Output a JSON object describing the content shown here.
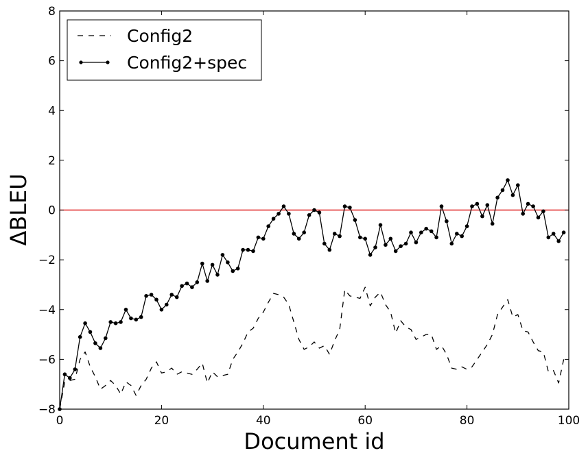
{
  "chart_data": {
    "type": "line",
    "xlabel": "Document id",
    "ylabel": "ΔBLEU",
    "xlim": [
      0,
      100
    ],
    "ylim": [
      -8,
      8
    ],
    "xticks": [
      0,
      20,
      40,
      60,
      80,
      100
    ],
    "yticks": [
      -8,
      -6,
      -4,
      -2,
      0,
      2,
      4,
      6,
      8
    ],
    "legend": {
      "position": "top-left"
    },
    "reference_line": {
      "y": 0,
      "color": "#e02020"
    },
    "series": [
      {
        "name": "Config2",
        "style": "dashed",
        "color": "#000000",
        "x": [
          0,
          1,
          2,
          3,
          4,
          5,
          6,
          7,
          8,
          9,
          10,
          11,
          12,
          13,
          14,
          15,
          16,
          17,
          18,
          19,
          20,
          21,
          22,
          23,
          24,
          25,
          26,
          27,
          28,
          29,
          30,
          31,
          32,
          33,
          34,
          35,
          36,
          37,
          38,
          39,
          40,
          41,
          42,
          43,
          44,
          45,
          46,
          47,
          48,
          49,
          50,
          51,
          52,
          53,
          54,
          55,
          56,
          57,
          58,
          59,
          60,
          61,
          62,
          63,
          64,
          65,
          66,
          67,
          68,
          69,
          70,
          71,
          72,
          73,
          74,
          75,
          76,
          77,
          78,
          79,
          80,
          81,
          82,
          83,
          84,
          85,
          86,
          87,
          88,
          89,
          90,
          91,
          92,
          93,
          94,
          95,
          96,
          97,
          98,
          99
        ],
        "y": [
          -8.0,
          -6.9,
          -6.85,
          -6.8,
          -6.0,
          -5.7,
          -6.3,
          -6.7,
          -7.2,
          -7.05,
          -6.85,
          -7.05,
          -7.4,
          -6.9,
          -7.05,
          -7.45,
          -7.05,
          -6.8,
          -6.35,
          -6.1,
          -6.55,
          -6.5,
          -6.35,
          -6.6,
          -6.5,
          -6.55,
          -6.6,
          -6.4,
          -6.15,
          -6.95,
          -6.5,
          -6.7,
          -6.65,
          -6.6,
          -6.0,
          -5.7,
          -5.35,
          -4.9,
          -4.75,
          -4.35,
          -4.1,
          -3.7,
          -3.35,
          -3.4,
          -3.5,
          -3.8,
          -4.5,
          -5.2,
          -5.6,
          -5.5,
          -5.3,
          -5.55,
          -5.45,
          -5.8,
          -5.25,
          -4.8,
          -3.2,
          -3.45,
          -3.5,
          -3.55,
          -3.1,
          -3.85,
          -3.5,
          -3.3,
          -3.8,
          -4.1,
          -4.95,
          -4.45,
          -4.7,
          -4.8,
          -5.2,
          -5.1,
          -5.0,
          -5.0,
          -5.6,
          -5.45,
          -5.8,
          -6.35,
          -6.4,
          -6.3,
          -6.4,
          -6.3,
          -6.0,
          -5.7,
          -5.4,
          -5.0,
          -4.2,
          -3.9,
          -3.6,
          -4.3,
          -4.2,
          -4.85,
          -4.9,
          -5.3,
          -5.65,
          -5.7,
          -6.5,
          -6.45,
          -6.95,
          -6.0
        ]
      },
      {
        "name": "Config2+spec",
        "style": "solid-markers",
        "color": "#000000",
        "x": [
          0,
          1,
          2,
          3,
          4,
          5,
          6,
          7,
          8,
          9,
          10,
          11,
          12,
          13,
          14,
          15,
          16,
          17,
          18,
          19,
          20,
          21,
          22,
          23,
          24,
          25,
          26,
          27,
          28,
          29,
          30,
          31,
          32,
          33,
          34,
          35,
          36,
          37,
          38,
          39,
          40,
          41,
          42,
          43,
          44,
          45,
          46,
          47,
          48,
          49,
          50,
          51,
          52,
          53,
          54,
          55,
          56,
          57,
          58,
          59,
          60,
          61,
          62,
          63,
          64,
          65,
          66,
          67,
          68,
          69,
          70,
          71,
          72,
          73,
          74,
          75,
          76,
          77,
          78,
          79,
          80,
          81,
          82,
          83,
          84,
          85,
          86,
          87,
          88,
          89,
          90,
          91,
          92,
          93,
          94,
          95,
          96,
          97,
          98,
          99
        ],
        "y": [
          -8.0,
          -6.6,
          -6.75,
          -6.4,
          -5.1,
          -4.55,
          -4.9,
          -5.35,
          -5.55,
          -5.15,
          -4.5,
          -4.55,
          -4.5,
          -4.0,
          -4.35,
          -4.4,
          -4.3,
          -3.45,
          -3.4,
          -3.6,
          -4.0,
          -3.8,
          -3.4,
          -3.5,
          -3.05,
          -2.95,
          -3.1,
          -2.9,
          -2.15,
          -2.85,
          -2.2,
          -2.6,
          -1.8,
          -2.1,
          -2.45,
          -2.35,
          -1.6,
          -1.6,
          -1.65,
          -1.1,
          -1.15,
          -0.65,
          -0.35,
          -0.15,
          0.15,
          -0.15,
          -0.95,
          -1.15,
          -0.9,
          -0.2,
          0.0,
          -0.1,
          -1.35,
          -1.6,
          -0.95,
          -1.05,
          0.15,
          0.1,
          -0.4,
          -1.1,
          -1.15,
          -1.8,
          -1.5,
          -0.6,
          -1.4,
          -1.15,
          -1.65,
          -1.45,
          -1.35,
          -0.9,
          -1.3,
          -0.9,
          -0.75,
          -0.85,
          -1.1,
          0.15,
          -0.45,
          -1.35,
          -0.95,
          -1.05,
          -0.65,
          0.15,
          0.25,
          -0.25,
          0.2,
          -0.55,
          0.5,
          0.8,
          1.2,
          0.6,
          1.0,
          -0.15,
          0.25,
          0.15,
          -0.3,
          -0.05,
          -1.1,
          -0.95,
          -1.25,
          -0.9
        ]
      }
    ]
  }
}
